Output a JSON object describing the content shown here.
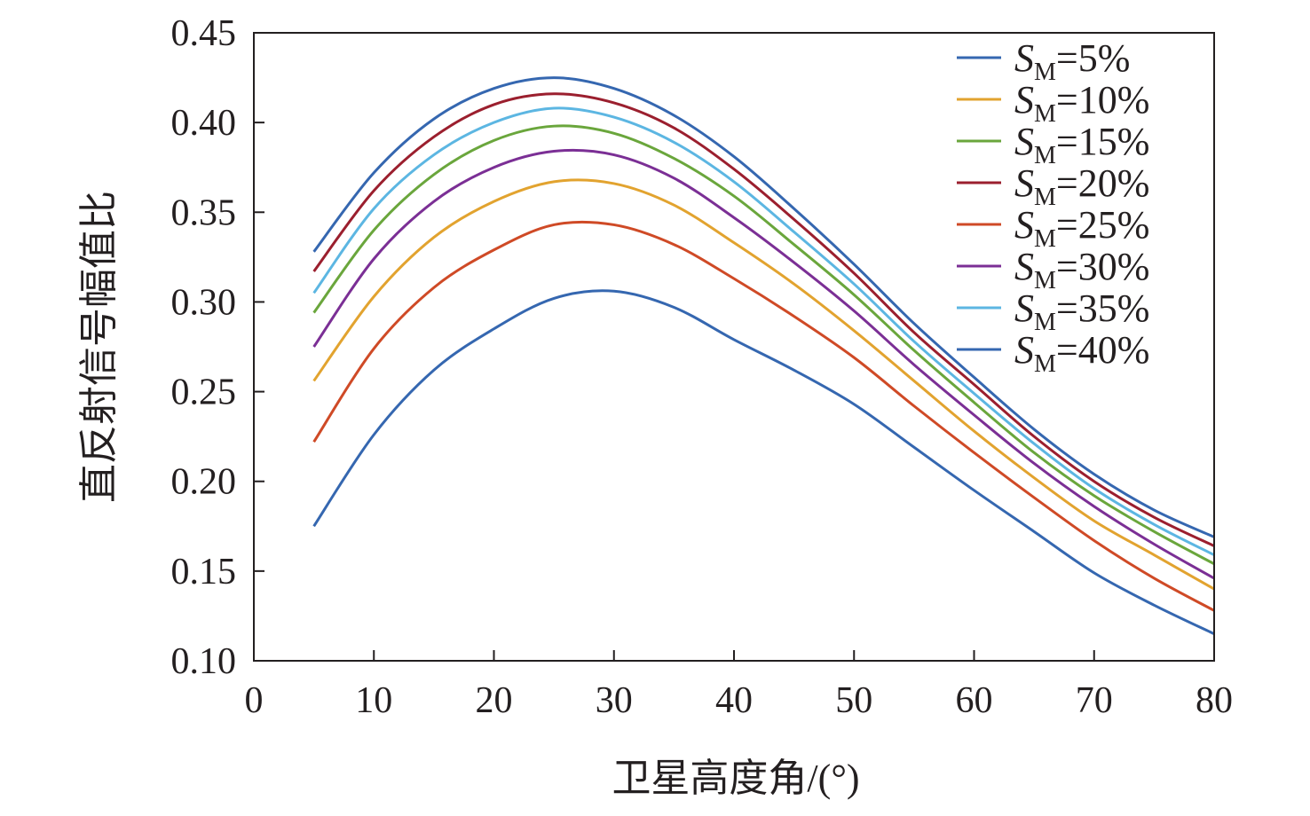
{
  "chart_data": {
    "type": "line",
    "title": "",
    "xlabel": "卫星高度角/(°)",
    "ylabel": "直反射信号幅值比",
    "xlim": [
      0,
      80
    ],
    "ylim": [
      0.1,
      0.45
    ],
    "xticks": [
      "0",
      "10",
      "20",
      "30",
      "40",
      "50",
      "60",
      "70",
      "80"
    ],
    "yticks": [
      "0.10",
      "0.15",
      "0.20",
      "0.25",
      "0.30",
      "0.35",
      "0.40",
      "0.45"
    ],
    "grid": false,
    "legend_position": "top-right",
    "x": [
      5,
      10,
      15,
      20,
      25,
      30,
      35,
      40,
      45,
      50,
      55,
      60,
      65,
      70,
      75,
      80
    ],
    "series": [
      {
        "name": "S",
        "sub": "M",
        "suffix": "=5%",
        "color": "#3567b0",
        "values": [
          0.328,
          0.372,
          0.402,
          0.419,
          0.425,
          0.419,
          0.404,
          0.381,
          0.352,
          0.321,
          0.288,
          0.258,
          0.229,
          0.204,
          0.184,
          0.169
        ]
      },
      {
        "name": "S",
        "sub": "M",
        "suffix": "=10%",
        "color": "#e2a32f",
        "values": [
          0.256,
          0.303,
          0.336,
          0.356,
          0.367,
          0.366,
          0.354,
          0.333,
          0.31,
          0.284,
          0.256,
          0.228,
          0.202,
          0.178,
          0.159,
          0.14
        ]
      },
      {
        "name": "S",
        "sub": "M",
        "suffix": "=15%",
        "color": "#6aa63c",
        "values": [
          0.294,
          0.34,
          0.371,
          0.39,
          0.398,
          0.394,
          0.38,
          0.359,
          0.332,
          0.304,
          0.273,
          0.244,
          0.216,
          0.192,
          0.172,
          0.154
        ]
      },
      {
        "name": "S",
        "sub": "M",
        "suffix": "=20%",
        "color": "#9b1f2e",
        "values": [
          0.317,
          0.362,
          0.392,
          0.41,
          0.416,
          0.411,
          0.397,
          0.374,
          0.346,
          0.316,
          0.283,
          0.254,
          0.225,
          0.2,
          0.18,
          0.164
        ]
      },
      {
        "name": "S",
        "sub": "M",
        "suffix": "=25%",
        "color": "#cf4a26",
        "values": [
          0.222,
          0.274,
          0.308,
          0.329,
          0.343,
          0.343,
          0.332,
          0.313,
          0.292,
          0.269,
          0.242,
          0.216,
          0.191,
          0.167,
          0.146,
          0.128
        ]
      },
      {
        "name": "S",
        "sub": "M",
        "suffix": "=30%",
        "color": "#7b2f95",
        "values": [
          0.275,
          0.324,
          0.356,
          0.375,
          0.384,
          0.382,
          0.369,
          0.347,
          0.322,
          0.295,
          0.265,
          0.237,
          0.21,
          0.186,
          0.165,
          0.146
        ]
      },
      {
        "name": "S",
        "sub": "M",
        "suffix": "=35%",
        "color": "#5cb6e2",
        "values": [
          0.305,
          0.352,
          0.382,
          0.4,
          0.408,
          0.403,
          0.389,
          0.367,
          0.339,
          0.31,
          0.278,
          0.249,
          0.221,
          0.196,
          0.176,
          0.159
        ]
      },
      {
        "name": "S",
        "sub": "M",
        "suffix": "=40%",
        "color": "#3567b0",
        "values": [
          0.175,
          0.226,
          0.262,
          0.285,
          0.302,
          0.306,
          0.297,
          0.279,
          0.262,
          0.243,
          0.219,
          0.195,
          0.172,
          0.149,
          0.131,
          0.115
        ]
      }
    ]
  }
}
